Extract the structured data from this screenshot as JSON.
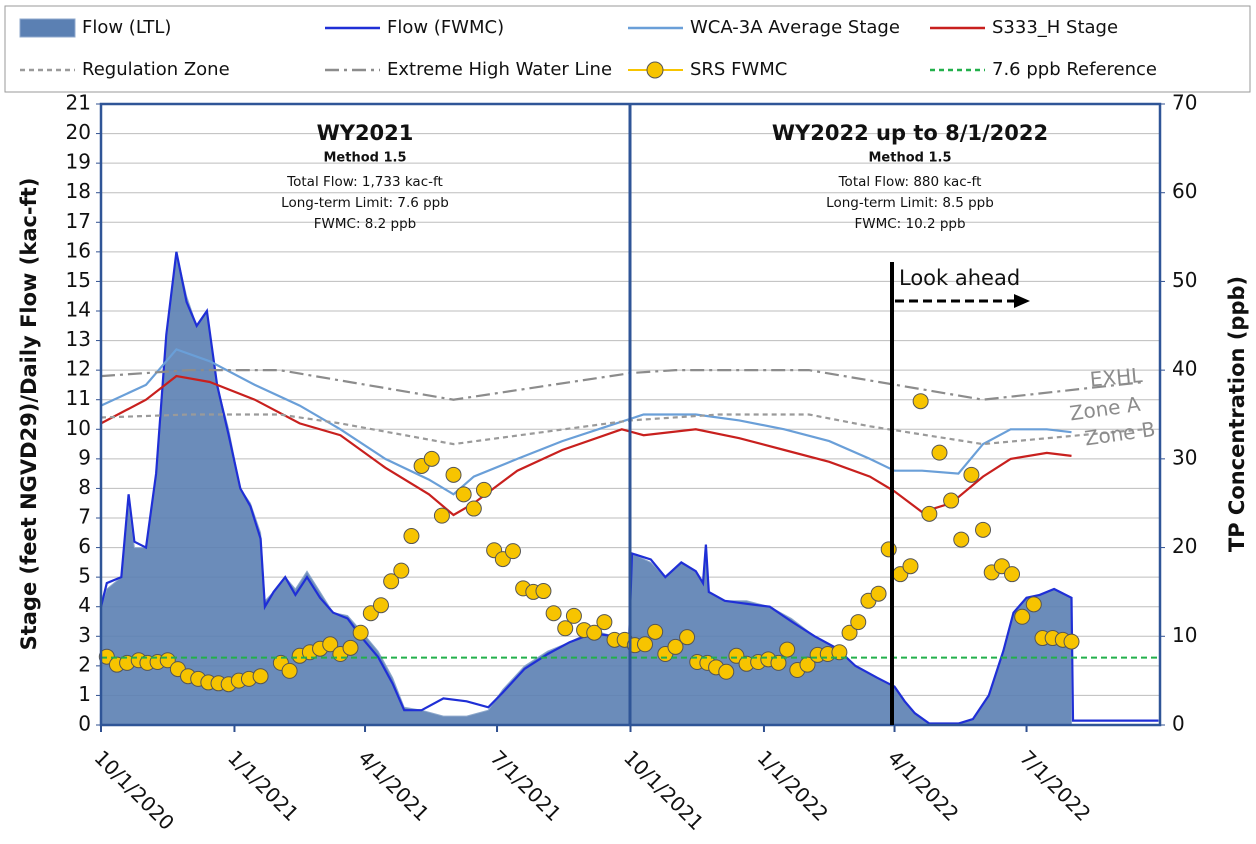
{
  "chart_data": {
    "type": "line",
    "y_label": "Stage (feet NGVD29)/Daily Flow (kac-ft)",
    "y2_label": "TP Concentration (ppb)",
    "xlim": [
      "2020-10-01",
      "2022-10-01"
    ],
    "xticks": [
      {
        "value": "2020-10-01",
        "label": "10/1/2020"
      },
      {
        "value": "2021-01-01",
        "label": "1/1/2021"
      },
      {
        "value": "2021-04-01",
        "label": "4/1/2021"
      },
      {
        "value": "2021-07-01",
        "label": "7/1/2021"
      },
      {
        "value": "2021-10-01",
        "label": "10/1/2021"
      },
      {
        "value": "2022-01-01",
        "label": "1/1/2022"
      },
      {
        "value": "2022-04-01",
        "label": "4/1/2022"
      },
      {
        "value": "2022-07-01",
        "label": "7/1/2022"
      }
    ],
    "ylim": [
      0,
      21
    ],
    "yticks": [
      0,
      1,
      2,
      3,
      4,
      5,
      6,
      7,
      8,
      9,
      10,
      11,
      12,
      13,
      14,
      15,
      16,
      17,
      18,
      19,
      20,
      21
    ],
    "y2lim": [
      0,
      70
    ],
    "y2ticks": [
      0,
      10,
      20,
      30,
      40,
      50,
      60,
      70
    ],
    "grid": true,
    "series": [
      {
        "name": "Flow (LTL)",
        "type": "area",
        "style": "solid",
        "color": "#5b80b3",
        "x": [
          "2020-10-01",
          "2020-10-05",
          "2020-10-15",
          "2020-10-20",
          "2020-10-24",
          "2020-11-01",
          "2020-11-08",
          "2020-11-15",
          "2020-11-22",
          "2020-11-29",
          "2020-12-06",
          "2020-12-13",
          "2020-12-20",
          "2020-12-28",
          "2021-01-05",
          "2021-01-12",
          "2021-01-19",
          "2021-01-22",
          "2021-01-28",
          "2021-02-05",
          "2021-02-12",
          "2021-02-20",
          "2021-03-01",
          "2021-03-10",
          "2021-03-20",
          "2021-03-29",
          "2021-04-10",
          "2021-04-20",
          "2021-04-28",
          "2021-05-10",
          "2021-05-25",
          "2021-06-10",
          "2021-06-25",
          "2021-07-05",
          "2021-07-20",
          "2021-08-05",
          "2021-08-20",
          "2021-09-05",
          "2021-09-20",
          "2021-09-30",
          "2021-10-02",
          "2021-10-15",
          "2021-10-25",
          "2021-11-05",
          "2021-11-15",
          "2021-11-20",
          "2021-11-22",
          "2021-11-24",
          "2021-12-05",
          "2021-12-20",
          "2022-01-05",
          "2022-01-20",
          "2022-02-05",
          "2022-02-20",
          "2022-03-05",
          "2022-03-20",
          "2022-04-01",
          "2022-04-08",
          "2022-04-15",
          "2022-04-25",
          "2022-05-15",
          "2022-05-25",
          "2022-06-05",
          "2022-06-15",
          "2022-06-22",
          "2022-07-01",
          "2022-07-10",
          "2022-07-20",
          "2022-08-01"
        ],
        "values": [
          4.0,
          4.6,
          5.0,
          7.5,
          6.0,
          6.0,
          8.5,
          13.0,
          16.0,
          14.5,
          13.5,
          14.0,
          11.5,
          10.0,
          8.0,
          7.5,
          6.5,
          4.2,
          4.5,
          5.0,
          4.6,
          5.2,
          4.5,
          3.8,
          3.7,
          3.2,
          2.5,
          1.6,
          0.6,
          0.5,
          0.3,
          0.3,
          0.5,
          1.2,
          2.0,
          2.5,
          2.8,
          3.2,
          3.0,
          2.9,
          5.8,
          5.5,
          5.0,
          5.5,
          5.2,
          4.8,
          6.1,
          4.5,
          4.2,
          4.2,
          4.0,
          3.6,
          3.0,
          2.6,
          2.0,
          1.6,
          1.3,
          0.8,
          0.4,
          0.05,
          0.05,
          0.2,
          1.0,
          2.5,
          3.8,
          4.3,
          4.4,
          4.6,
          4.3
        ]
      },
      {
        "name": "Flow (FWMC)",
        "type": "line",
        "style": "solid",
        "color": "#1f2fd6",
        "x": [
          "2020-10-01",
          "2020-10-05",
          "2020-10-15",
          "2020-10-20",
          "2020-10-24",
          "2020-11-01",
          "2020-11-08",
          "2020-11-15",
          "2020-11-22",
          "2020-11-29",
          "2020-12-06",
          "2020-12-13",
          "2020-12-20",
          "2020-12-28",
          "2021-01-05",
          "2021-01-12",
          "2021-01-19",
          "2021-01-22",
          "2021-01-28",
          "2021-02-05",
          "2021-02-12",
          "2021-02-20",
          "2021-03-01",
          "2021-03-10",
          "2021-03-20",
          "2021-03-29",
          "2021-04-10",
          "2021-04-20",
          "2021-04-28",
          "2021-05-10",
          "2021-05-25",
          "2021-06-10",
          "2021-06-25",
          "2021-07-05",
          "2021-07-20",
          "2021-08-05",
          "2021-08-20",
          "2021-09-05",
          "2021-09-20",
          "2021-09-30",
          "2021-10-02",
          "2021-10-15",
          "2021-10-25",
          "2021-11-05",
          "2021-11-15",
          "2021-11-20",
          "2021-11-22",
          "2021-11-24",
          "2021-12-05",
          "2021-12-20",
          "2022-01-05",
          "2022-01-20",
          "2022-02-05",
          "2022-02-20",
          "2022-03-05",
          "2022-03-20",
          "2022-04-01",
          "2022-04-08",
          "2022-04-15",
          "2022-04-25",
          "2022-05-15",
          "2022-05-25",
          "2022-06-05",
          "2022-06-15",
          "2022-06-22",
          "2022-07-01",
          "2022-07-10",
          "2022-07-20",
          "2022-08-01",
          "2022-08-02",
          "2022-09-30"
        ],
        "values": [
          4.0,
          4.8,
          5.0,
          7.8,
          6.2,
          6.0,
          8.5,
          13.2,
          16.0,
          14.3,
          13.5,
          14.0,
          11.5,
          9.8,
          8.0,
          7.4,
          6.3,
          4.0,
          4.5,
          5.0,
          4.4,
          5.0,
          4.3,
          3.8,
          3.6,
          3.0,
          2.3,
          1.4,
          0.5,
          0.5,
          0.9,
          0.8,
          0.6,
          1.1,
          1.9,
          2.4,
          2.8,
          3.1,
          3.0,
          2.8,
          5.8,
          5.6,
          5.0,
          5.5,
          5.2,
          4.8,
          6.1,
          4.5,
          4.2,
          4.1,
          4.0,
          3.5,
          3.0,
          2.6,
          2.0,
          1.6,
          1.3,
          0.8,
          0.4,
          0.05,
          0.05,
          0.2,
          1.0,
          2.5,
          3.8,
          4.3,
          4.4,
          4.6,
          4.3,
          0.15,
          0.15
        ]
      },
      {
        "name": "WCA-3A Average Stage",
        "type": "line",
        "style": "solid",
        "color": "#6a9fd8",
        "x": [
          "2020-10-01",
          "2020-11-01",
          "2020-11-22",
          "2020-12-15",
          "2021-01-15",
          "2021-02-15",
          "2021-03-15",
          "2021-04-15",
          "2021-05-15",
          "2021-06-01",
          "2021-06-15",
          "2021-07-15",
          "2021-08-15",
          "2021-09-15",
          "2021-10-10",
          "2021-11-15",
          "2021-12-15",
          "2022-01-15",
          "2022-02-15",
          "2022-03-15",
          "2022-04-01",
          "2022-04-20",
          "2022-05-15",
          "2022-06-01",
          "2022-06-20",
          "2022-07-15",
          "2022-08-01"
        ],
        "values": [
          10.8,
          11.5,
          12.7,
          12.3,
          11.5,
          10.8,
          10.0,
          9.0,
          8.3,
          7.8,
          8.4,
          9.0,
          9.6,
          10.1,
          10.5,
          10.5,
          10.3,
          10.0,
          9.6,
          9.0,
          8.6,
          8.6,
          8.5,
          9.5,
          10.0,
          10.0,
          9.9
        ]
      },
      {
        "name": "S333_H Stage",
        "type": "line",
        "style": "solid",
        "color": "#c8201e",
        "x": [
          "2020-10-01",
          "2020-11-01",
          "2020-11-22",
          "2020-12-15",
          "2021-01-15",
          "2021-02-15",
          "2021-03-15",
          "2021-04-15",
          "2021-05-15",
          "2021-06-01",
          "2021-06-15",
          "2021-07-15",
          "2021-08-15",
          "2021-09-25",
          "2021-10-10",
          "2021-11-15",
          "2021-12-15",
          "2022-01-15",
          "2022-02-15",
          "2022-03-15",
          "2022-04-01",
          "2022-04-20",
          "2022-05-10",
          "2022-06-01",
          "2022-06-20",
          "2022-07-15",
          "2022-08-01"
        ],
        "values": [
          10.2,
          11.0,
          11.8,
          11.6,
          11.0,
          10.2,
          9.8,
          8.7,
          7.8,
          7.1,
          7.5,
          8.6,
          9.3,
          10.0,
          9.8,
          10.0,
          9.7,
          9.3,
          8.9,
          8.4,
          7.9,
          7.2,
          7.5,
          8.4,
          9.0,
          9.2,
          9.1
        ]
      },
      {
        "name": "Regulation Zone",
        "type": "line",
        "style": "dashed",
        "color": "#9a9a9a",
        "x": [
          "2020-10-01",
          "2020-12-01",
          "2021-02-01",
          "2021-03-15",
          "2021-06-01",
          "2021-10-01",
          "2021-12-01",
          "2022-02-01",
          "2022-03-15",
          "2022-06-01",
          "2022-09-20"
        ],
        "values": [
          10.4,
          10.5,
          10.5,
          10.2,
          9.5,
          10.3,
          10.5,
          10.5,
          10.1,
          9.5,
          10.0
        ]
      },
      {
        "name": "Extreme High Water Line",
        "type": "line",
        "style": "dashdot",
        "color": "#8c8c8c",
        "x": [
          "2020-10-01",
          "2020-12-01",
          "2021-02-01",
          "2021-06-01",
          "2021-10-01",
          "2021-11-01",
          "2022-02-01",
          "2022-06-01",
          "2022-09-20"
        ],
        "values": [
          11.8,
          12.0,
          12.0,
          11.0,
          11.9,
          12.0,
          12.0,
          11.0,
          11.6
        ]
      },
      {
        "name": "SRS FWMC",
        "type": "scatter",
        "style": "solid",
        "color": "#f7c400",
        "axis": "y2",
        "x": [
          "2020-10-05",
          "2020-10-12",
          "2020-10-19",
          "2020-10-27",
          "2020-11-02",
          "2020-11-09",
          "2020-11-16",
          "2020-11-23",
          "2020-11-30",
          "2020-12-07",
          "2020-12-14",
          "2020-12-21",
          "2020-12-28",
          "2021-01-04",
          "2021-01-11",
          "2021-01-19",
          "2021-02-02",
          "2021-02-08",
          "2021-02-15",
          "2021-02-22",
          "2021-03-01",
          "2021-03-08",
          "2021-03-15",
          "2021-03-22",
          "2021-03-29",
          "2021-04-05",
          "2021-04-12",
          "2021-04-19",
          "2021-04-26",
          "2021-05-03",
          "2021-05-10",
          "2021-05-17",
          "2021-05-24",
          "2021-06-01",
          "2021-06-08",
          "2021-06-15",
          "2021-06-22",
          "2021-06-29",
          "2021-07-05",
          "2021-07-12",
          "2021-07-19",
          "2021-07-26",
          "2021-08-02",
          "2021-08-09",
          "2021-08-17",
          "2021-08-23",
          "2021-08-30",
          "2021-09-06",
          "2021-09-13",
          "2021-09-20",
          "2021-09-27",
          "2021-10-04",
          "2021-10-11",
          "2021-10-18",
          "2021-10-25",
          "2021-11-01",
          "2021-11-09",
          "2021-11-16",
          "2021-11-23",
          "2021-11-29",
          "2021-12-06",
          "2021-12-13",
          "2021-12-20",
          "2021-12-28",
          "2022-01-04",
          "2022-01-11",
          "2022-01-17",
          "2022-01-24",
          "2022-01-31",
          "2022-02-07",
          "2022-02-14",
          "2022-02-22",
          "2022-03-01",
          "2022-03-07",
          "2022-03-14",
          "2022-03-21",
          "2022-03-28",
          "2022-04-05",
          "2022-04-12",
          "2022-04-19",
          "2022-04-25",
          "2022-05-02",
          "2022-05-10",
          "2022-05-17",
          "2022-05-24",
          "2022-06-01",
          "2022-06-07",
          "2022-06-14",
          "2022-06-21",
          "2022-06-28",
          "2022-07-06",
          "2022-07-12",
          "2022-07-19",
          "2022-07-26",
          "2022-08-01"
        ],
        "values": [
          7.7,
          6.8,
          7.0,
          7.3,
          7.0,
          7.1,
          7.3,
          6.3,
          5.5,
          5.2,
          4.8,
          4.7,
          4.6,
          5.0,
          5.2,
          5.5,
          7.0,
          6.1,
          7.8,
          8.2,
          8.6,
          9.1,
          8.0,
          8.7,
          10.4,
          12.6,
          13.5,
          16.2,
          17.4,
          21.3,
          29.2,
          30.0,
          23.6,
          28.2,
          26.0,
          24.4,
          26.5,
          19.7,
          18.7,
          19.6,
          15.4,
          15.0,
          15.1,
          12.6,
          10.9,
          12.3,
          10.7,
          10.4,
          11.6,
          9.6,
          9.6,
          9.0,
          9.1,
          10.5,
          8.0,
          8.8,
          9.9,
          7.1,
          7.0,
          6.5,
          6.0,
          7.8,
          6.9,
          7.1,
          7.4,
          7.0,
          8.5,
          6.2,
          6.8,
          7.9,
          8.0,
          8.2,
          10.4,
          11.6,
          14.0,
          14.8,
          19.8,
          17.0,
          17.9,
          36.5,
          23.8,
          30.7,
          25.3,
          20.9,
          28.2,
          22.0,
          17.2,
          17.9,
          17.0,
          12.2,
          13.6,
          9.8,
          9.8,
          9.6,
          9.4
        ]
      }
    ],
    "reference": {
      "name": "7.6 ppb Reference",
      "value": 7.6,
      "axis": "y2",
      "color": "#22b04b"
    },
    "wy2021": {
      "title": "WY2021",
      "method": "Method 1.5",
      "lines": [
        "Total Flow:  1,733 kac-ft",
        "Long-term Limit: 7.6 ppb",
        "FWMC:  8.2 ppb"
      ]
    },
    "wy2022": {
      "title": "WY2022 up to 8/1/2022",
      "method": "Method 1.5",
      "lines": [
        "Total Flow: 880 kac-ft",
        "Long-term Limit: 8.5 ppb",
        "FWMC:  10.2 ppb"
      ]
    },
    "look_ahead": "Look ahead",
    "line_labels": [
      "EXHL",
      "Zone A",
      "Zone B"
    ]
  }
}
